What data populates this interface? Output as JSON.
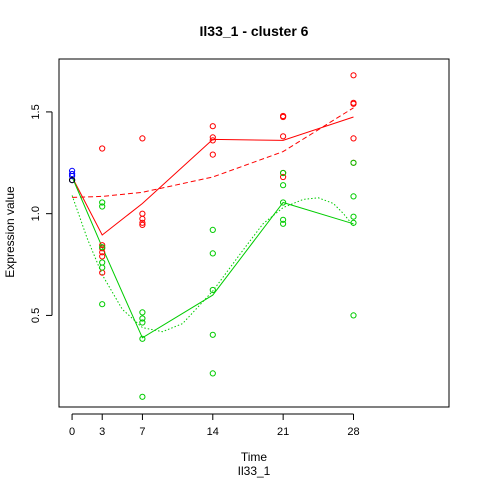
{
  "chart_data": {
    "type": "scatter",
    "title": "Il33_1 - cluster 6",
    "xlabel": "Time",
    "sublabel": "Il33_1",
    "ylabel": "Expression value",
    "x_ticks": [
      "0",
      "3",
      "7",
      "14",
      "21",
      "28"
    ],
    "y_ticks": [
      "0.5",
      "1.0",
      "1.5"
    ],
    "xlim": [
      -1.3,
      37.5
    ],
    "ylim": [
      0.05,
      1.76
    ],
    "grid": false,
    "colors": {
      "red": "#ff0000",
      "green": "#00cc00",
      "blue": "#0000ff",
      "axis": "#000000"
    },
    "series": [
      {
        "color": "#ff0000",
        "points": [
          [
            3,
            1.32
          ],
          [
            3,
            0.845
          ],
          [
            3,
            0.83
          ],
          [
            3,
            0.81
          ],
          [
            3,
            0.79
          ],
          [
            3,
            0.71
          ],
          [
            7,
            1.37
          ],
          [
            7,
            1.0
          ],
          [
            7,
            0.975
          ],
          [
            7,
            0.955
          ],
          [
            7,
            0.945
          ],
          [
            14,
            1.43
          ],
          [
            14,
            1.375
          ],
          [
            14,
            1.36
          ],
          [
            14,
            1.29
          ],
          [
            21,
            1.48
          ],
          [
            21,
            1.475
          ],
          [
            21,
            1.38
          ],
          [
            21,
            1.2
          ],
          [
            21,
            1.18
          ],
          [
            28,
            1.68
          ],
          [
            28,
            1.545
          ],
          [
            28,
            1.54
          ],
          [
            28,
            1.37
          ],
          [
            28,
            1.25
          ]
        ],
        "mean_line": [
          [
            0,
            1.18
          ],
          [
            3,
            0.895
          ],
          [
            7,
            1.05
          ],
          [
            14,
            1.365
          ],
          [
            21,
            1.36
          ],
          [
            28,
            1.475
          ]
        ],
        "fit_line": [
          [
            0,
            1.08
          ],
          [
            3,
            1.085
          ],
          [
            7,
            1.105
          ],
          [
            14,
            1.18
          ],
          [
            21,
            1.305
          ],
          [
            28,
            1.52
          ]
        ]
      },
      {
        "color": "#00cc00",
        "points": [
          [
            3,
            1.055
          ],
          [
            3,
            1.035
          ],
          [
            3,
            0.835
          ],
          [
            3,
            0.76
          ],
          [
            3,
            0.735
          ],
          [
            3,
            0.555
          ],
          [
            7,
            0.515
          ],
          [
            7,
            0.485
          ],
          [
            7,
            0.465
          ],
          [
            7,
            0.385
          ],
          [
            7,
            0.1
          ],
          [
            14,
            0.92
          ],
          [
            14,
            0.805
          ],
          [
            14,
            0.625
          ],
          [
            14,
            0.405
          ],
          [
            14,
            0.215
          ],
          [
            21,
            1.2
          ],
          [
            21,
            1.14
          ],
          [
            21,
            1.055
          ],
          [
            21,
            0.97
          ],
          [
            21,
            0.95
          ],
          [
            28,
            1.25
          ],
          [
            28,
            1.085
          ],
          [
            28,
            0.985
          ],
          [
            28,
            0.955
          ],
          [
            28,
            0.5
          ]
        ],
        "mean_line": [
          [
            0,
            1.18
          ],
          [
            3,
            0.835
          ],
          [
            7,
            0.39
          ],
          [
            14,
            0.6
          ],
          [
            21,
            1.055
          ],
          [
            28,
            0.95
          ]
        ],
        "fit_line": [
          [
            0,
            1.09
          ],
          [
            1.5,
            0.88
          ],
          [
            3,
            0.7
          ],
          [
            5,
            0.53
          ],
          [
            7,
            0.44
          ],
          [
            9,
            0.42
          ],
          [
            11,
            0.46
          ],
          [
            14,
            0.62
          ],
          [
            17,
            0.82
          ],
          [
            19,
            0.95
          ],
          [
            21,
            1.03
          ],
          [
            23,
            1.07
          ],
          [
            24.5,
            1.078
          ],
          [
            26,
            1.05
          ],
          [
            27,
            1.0
          ],
          [
            28,
            0.94
          ]
        ]
      },
      {
        "color": "#0000ff",
        "points": [
          [
            0,
            1.21
          ],
          [
            0,
            1.195
          ],
          [
            0,
            1.185
          ],
          [
            0,
            1.165
          ]
        ]
      },
      {
        "color": "#000000",
        "points": [
          [
            0,
            1.165
          ]
        ]
      }
    ]
  }
}
